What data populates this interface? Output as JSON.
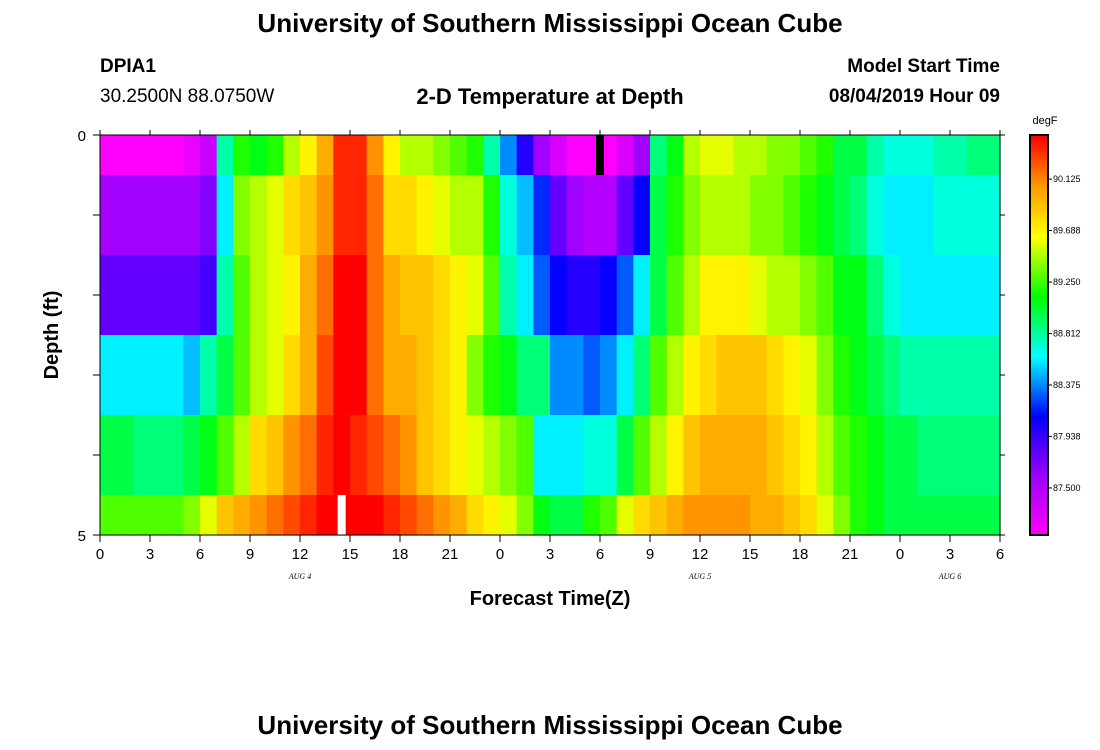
{
  "header": {
    "title": "University of Southern Mississippi Ocean Cube",
    "station_id": "DPIA1",
    "station_coords": "30.2500N 88.0750W",
    "chart_title": "2-D Temperature at Depth",
    "model_start_label": "Model Start Time",
    "model_start_value": "08/04/2019 Hour 09"
  },
  "footer": {
    "title": "University of Southern Mississippi Ocean Cube"
  },
  "chart_data": {
    "type": "heatmap",
    "title": "2-D Temperature at Depth",
    "xlabel": "Forecast Time(Z)",
    "ylabel": "Depth (ft)",
    "xlim": [
      0,
      54
    ],
    "ylim": [
      0,
      5
    ],
    "x_tick_labels": [
      "0",
      "3",
      "6",
      "9",
      "12",
      "15",
      "18",
      "21",
      "0",
      "3",
      "6",
      "9",
      "12",
      "15",
      "18",
      "21",
      "0",
      "3",
      "6"
    ],
    "y_tick_labels": [
      "0",
      "5"
    ],
    "date_labels": [
      {
        "text": "AUG 4",
        "hour": 12
      },
      {
        "text": "AUG 5",
        "hour": 36
      },
      {
        "text": "AUG 6",
        "hour": 51
      }
    ],
    "colorbar": {
      "unit": "degF",
      "min": 87.1,
      "max": 90.5,
      "tick_values": [
        "90.125",
        "89.688",
        "89.250",
        "88.812",
        "88.375",
        "87.938",
        "87.500"
      ]
    },
    "depth_layers": [
      "0.0-0.5",
      "0.5-1.5",
      "1.5-2.5",
      "2.5-3.5",
      "3.5-4.5",
      "4.5-5.0"
    ],
    "hours": [
      0,
      1,
      2,
      3,
      4,
      5,
      6,
      7,
      8,
      9,
      10,
      11,
      12,
      13,
      14,
      15,
      16,
      17,
      18,
      19,
      20,
      21,
      22,
      23,
      24,
      25,
      26,
      27,
      28,
      29,
      30,
      31,
      32,
      33,
      34,
      35,
      36,
      37,
      38,
      39,
      40,
      41,
      42,
      43,
      44,
      45,
      46,
      47,
      48,
      49,
      50,
      51,
      52,
      53
    ],
    "temperature_degF": [
      [
        87.1,
        87.1,
        87.1,
        87.1,
        87.1,
        87.2,
        87.4,
        88.8,
        89.2,
        89.1,
        89.2,
        89.5,
        89.7,
        90.0,
        90.4,
        90.4,
        90.1,
        89.7,
        89.5,
        89.5,
        89.4,
        89.3,
        89.2,
        88.8,
        88.4,
        88.0,
        87.6,
        87.3,
        87.1,
        87.1,
        87.1,
        87.3,
        87.6,
        88.9,
        89.1,
        89.5,
        89.6,
        89.6,
        89.5,
        89.5,
        89.4,
        89.4,
        89.3,
        89.2,
        89.0,
        89.0,
        88.8,
        88.7,
        88.7,
        88.7,
        88.8,
        88.8,
        88.9,
        88.9
      ],
      [
        87.6,
        87.6,
        87.6,
        87.6,
        87.6,
        87.6,
        87.7,
        88.6,
        89.4,
        89.5,
        89.6,
        89.8,
        89.9,
        90.1,
        90.4,
        90.4,
        90.2,
        89.8,
        89.8,
        89.7,
        89.6,
        89.5,
        89.5,
        89.2,
        88.7,
        88.5,
        88.2,
        87.8,
        87.6,
        87.5,
        87.5,
        87.8,
        88.1,
        89.0,
        89.2,
        89.4,
        89.5,
        89.5,
        89.5,
        89.4,
        89.4,
        89.3,
        89.2,
        89.1,
        89.0,
        88.9,
        88.7,
        88.6,
        88.6,
        88.6,
        88.7,
        88.7,
        88.7,
        88.7
      ],
      [
        87.8,
        87.8,
        87.8,
        87.8,
        87.8,
        87.8,
        87.9,
        88.8,
        89.3,
        89.5,
        89.6,
        89.7,
        90.0,
        90.2,
        90.5,
        90.5,
        90.2,
        90.0,
        89.9,
        89.9,
        89.8,
        89.7,
        89.6,
        89.3,
        88.8,
        88.6,
        88.3,
        88.1,
        88.0,
        88.0,
        88.1,
        88.3,
        88.6,
        89.0,
        89.3,
        89.5,
        89.7,
        89.7,
        89.7,
        89.6,
        89.5,
        89.5,
        89.4,
        89.3,
        89.1,
        89.1,
        88.9,
        88.7,
        88.6,
        88.6,
        88.6,
        88.6,
        88.6,
        88.6
      ],
      [
        88.6,
        88.6,
        88.6,
        88.6,
        88.6,
        88.5,
        88.8,
        89.0,
        89.3,
        89.5,
        89.6,
        89.8,
        90.0,
        90.3,
        90.5,
        90.5,
        90.2,
        90.0,
        90.0,
        89.9,
        89.8,
        89.7,
        89.4,
        89.2,
        89.1,
        88.9,
        88.9,
        88.4,
        88.4,
        88.3,
        88.4,
        88.6,
        88.9,
        89.3,
        89.5,
        89.7,
        89.8,
        89.9,
        89.9,
        89.9,
        89.8,
        89.7,
        89.6,
        89.4,
        89.2,
        89.1,
        89.0,
        88.9,
        88.8,
        88.8,
        88.8,
        88.8,
        88.8,
        88.8
      ],
      [
        89.0,
        89.0,
        88.9,
        88.9,
        88.9,
        89.0,
        89.1,
        89.3,
        89.5,
        89.8,
        89.9,
        90.1,
        90.2,
        90.4,
        90.5,
        90.4,
        90.3,
        90.2,
        90.1,
        89.9,
        89.8,
        89.7,
        89.6,
        89.5,
        89.4,
        89.3,
        88.6,
        88.6,
        88.6,
        88.7,
        88.7,
        89.0,
        89.3,
        89.5,
        89.7,
        89.9,
        90.0,
        90.0,
        90.0,
        90.0,
        89.9,
        89.8,
        89.7,
        89.5,
        89.3,
        89.2,
        89.1,
        89.0,
        89.0,
        88.9,
        88.9,
        88.9,
        88.9,
        88.9
      ],
      [
        89.3,
        89.3,
        89.3,
        89.3,
        89.3,
        89.4,
        89.6,
        89.9,
        90.0,
        90.1,
        90.2,
        90.3,
        90.4,
        90.5,
        90.5,
        90.5,
        90.5,
        90.4,
        90.3,
        90.2,
        90.1,
        90.0,
        89.8,
        89.7,
        89.6,
        89.4,
        89.1,
        89.0,
        89.0,
        89.2,
        89.3,
        89.6,
        89.8,
        89.9,
        90.0,
        90.1,
        90.1,
        90.1,
        90.1,
        90.0,
        90.0,
        89.9,
        89.8,
        89.6,
        89.4,
        89.2,
        89.1,
        89.0,
        89.0,
        89.0,
        89.0,
        89.0,
        89.0,
        89.0
      ]
    ],
    "markers": [
      {
        "hour": 30,
        "depth_ft": 0.25,
        "color": "#000000"
      },
      {
        "hour": 14.5,
        "depth_ft": 4.75,
        "color": "#ffffff"
      }
    ]
  }
}
